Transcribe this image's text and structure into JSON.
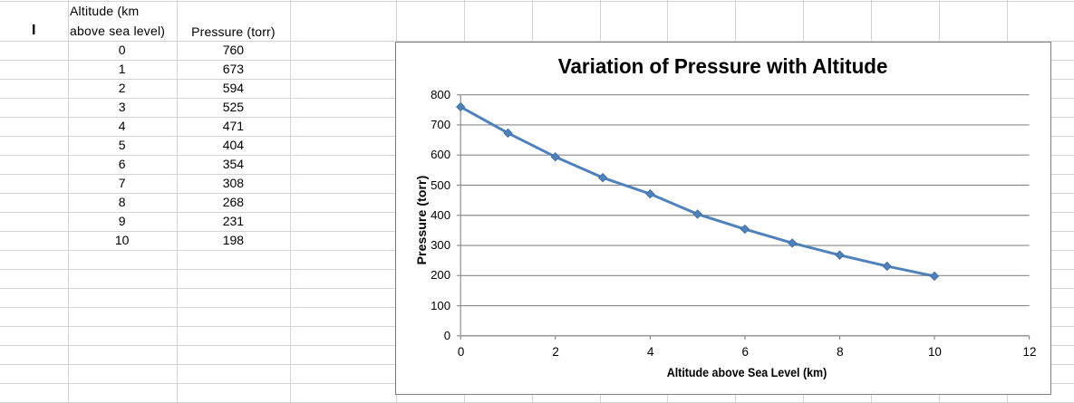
{
  "spreadsheet": {
    "corner_label": "I",
    "headers": {
      "altitude_line1": "Altitude (km",
      "altitude_line2": "above sea level)",
      "pressure": "Pressure (torr)"
    },
    "rows": [
      {
        "altitude": "0",
        "pressure": "760"
      },
      {
        "altitude": "1",
        "pressure": "673"
      },
      {
        "altitude": "2",
        "pressure": "594"
      },
      {
        "altitude": "3",
        "pressure": "525"
      },
      {
        "altitude": "4",
        "pressure": "471"
      },
      {
        "altitude": "5",
        "pressure": "404"
      },
      {
        "altitude": "6",
        "pressure": "354"
      },
      {
        "altitude": "7",
        "pressure": "308"
      },
      {
        "altitude": "8",
        "pressure": "268"
      },
      {
        "altitude": "9",
        "pressure": "231"
      },
      {
        "altitude": "10",
        "pressure": "198"
      }
    ]
  },
  "chart_data": {
    "type": "line",
    "title": "Variation of Pressure with Altitude",
    "xlabel": "Altitude above Sea Level (km)",
    "ylabel": "Pressure (torr)",
    "x": [
      0,
      1,
      2,
      3,
      4,
      5,
      6,
      7,
      8,
      9,
      10
    ],
    "y": [
      760,
      673,
      594,
      525,
      471,
      404,
      354,
      308,
      268,
      231,
      198
    ],
    "xlim": [
      0,
      12
    ],
    "ylim": [
      0,
      800
    ],
    "xticks": [
      0,
      2,
      4,
      6,
      8,
      10,
      12
    ],
    "yticks": [
      0,
      100,
      200,
      300,
      400,
      500,
      600,
      700,
      800
    ],
    "grid": "horizontal",
    "legend": "none",
    "marker": "diamond"
  },
  "colors": {
    "sheet_gridline": "#d4d4d4",
    "chart_border": "#7f7f7f",
    "chart_gridline": "#8a8a8a",
    "axis_line": "#8a8a8a",
    "series": "#4f81bd",
    "marker_edge": "#3d6a9e",
    "text": "#000000"
  }
}
